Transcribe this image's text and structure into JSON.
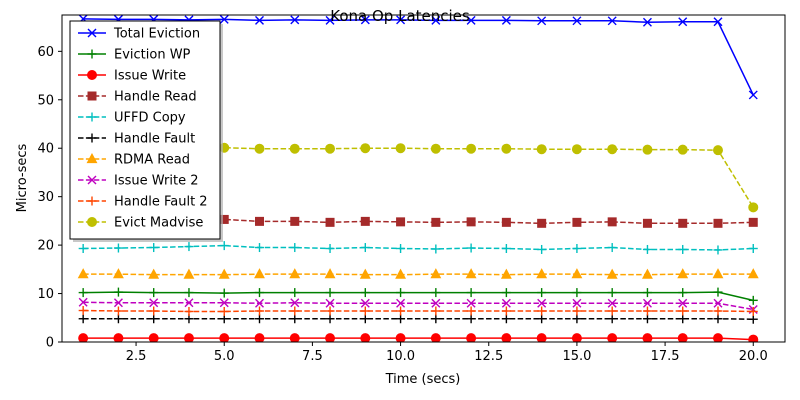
{
  "chart_data": {
    "type": "line",
    "title": "Kona Op Latencies",
    "xlabel": "Time (secs)",
    "ylabel": "Micro-secs",
    "xlim": [
      0.4,
      20.9
    ],
    "ylim": [
      0,
      67.5
    ],
    "xticks": [
      2.5,
      5.0,
      7.5,
      10.0,
      12.5,
      15.0,
      17.5,
      20.0
    ],
    "xtick_labels": [
      "2.5",
      "5.0",
      "7.5",
      "10.0",
      "12.5",
      "15.0",
      "17.5",
      "20.0"
    ],
    "yticks": [
      0,
      10,
      20,
      30,
      40,
      50,
      60
    ],
    "ytick_labels": [
      "0",
      "10",
      "20",
      "30",
      "40",
      "50",
      "60"
    ],
    "grid": false,
    "legend_position": "upper-left",
    "x": [
      1,
      2,
      3,
      4,
      5,
      6,
      7,
      8,
      9,
      10,
      11,
      12,
      13,
      14,
      15,
      16,
      17,
      18,
      19,
      20
    ],
    "series": [
      {
        "name": "Total Eviction",
        "color": "#0000ff",
        "marker": "x",
        "dash": "solid",
        "values": [
          66.7,
          66.6,
          66.6,
          66.5,
          66.6,
          66.4,
          66.5,
          66.4,
          66.5,
          66.5,
          66.4,
          66.4,
          66.4,
          66.3,
          66.3,
          66.3,
          66.0,
          66.1,
          66.1,
          51.0
        ]
      },
      {
        "name": "Eviction WP",
        "color": "#008000",
        "marker": "plus",
        "dash": "solid",
        "values": [
          10.2,
          10.3,
          10.2,
          10.2,
          10.1,
          10.2,
          10.2,
          10.2,
          10.2,
          10.2,
          10.2,
          10.2,
          10.2,
          10.2,
          10.2,
          10.2,
          10.2,
          10.2,
          10.3,
          8.6
        ]
      },
      {
        "name": "Issue Write",
        "color": "#ff0000",
        "marker": "circle",
        "dash": "solid",
        "values": [
          0.8,
          0.8,
          0.8,
          0.8,
          0.8,
          0.8,
          0.8,
          0.8,
          0.8,
          0.8,
          0.8,
          0.8,
          0.8,
          0.8,
          0.8,
          0.8,
          0.8,
          0.8,
          0.8,
          0.5
        ]
      },
      {
        "name": "Handle Read",
        "color": "#a52a2a",
        "marker": "square",
        "dash": "dashed",
        "values": [
          25.5,
          25.3,
          25.3,
          25.2,
          25.3,
          24.9,
          24.9,
          24.7,
          24.9,
          24.8,
          24.7,
          24.8,
          24.7,
          24.5,
          24.7,
          24.8,
          24.5,
          24.5,
          24.5,
          24.7
        ]
      },
      {
        "name": "UFFD Copy",
        "color": "#00bfbf",
        "marker": "plus",
        "dash": "dashed",
        "values": [
          19.3,
          19.4,
          19.5,
          19.7,
          19.9,
          19.5,
          19.5,
          19.3,
          19.5,
          19.3,
          19.2,
          19.4,
          19.3,
          19.1,
          19.3,
          19.5,
          19.1,
          19.1,
          19.0,
          19.3
        ]
      },
      {
        "name": "Handle Fault",
        "color": "#000000",
        "marker": "plus",
        "dash": "dashed",
        "values": [
          4.8,
          4.8,
          4.8,
          4.8,
          4.8,
          4.8,
          4.8,
          4.8,
          4.8,
          4.8,
          4.8,
          4.8,
          4.8,
          4.8,
          4.8,
          4.8,
          4.8,
          4.8,
          4.8,
          4.7
        ]
      },
      {
        "name": "RDMA Read",
        "color": "#ffa500",
        "marker": "triangle",
        "dash": "dashed",
        "values": [
          14.0,
          14.0,
          13.9,
          13.9,
          13.9,
          14.0,
          14.0,
          14.0,
          13.9,
          13.9,
          14.0,
          14.0,
          13.9,
          14.0,
          14.0,
          13.9,
          13.9,
          14.0,
          14.0,
          14.0
        ]
      },
      {
        "name": "Issue Write 2",
        "color": "#bf00bf",
        "marker": "x",
        "dash": "dashed",
        "values": [
          8.2,
          8.1,
          8.1,
          8.1,
          8.1,
          8.0,
          8.1,
          8.0,
          8.0,
          8.0,
          8.0,
          8.0,
          8.0,
          8.0,
          8.0,
          8.0,
          8.0,
          8.0,
          8.0,
          6.7
        ]
      },
      {
        "name": "Handle Fault 2",
        "color": "#ff4500",
        "marker": "plus",
        "dash": "dashed",
        "values": [
          6.5,
          6.4,
          6.4,
          6.3,
          6.3,
          6.4,
          6.4,
          6.4,
          6.4,
          6.4,
          6.4,
          6.4,
          6.4,
          6.4,
          6.4,
          6.4,
          6.4,
          6.4,
          6.4,
          6.3
        ]
      },
      {
        "name": "Evict Madvise",
        "color": "#bfbf00",
        "marker": "circle",
        "dash": "dashed",
        "values": [
          40.8,
          40.6,
          40.5,
          40.3,
          40.1,
          39.9,
          39.9,
          39.9,
          40.0,
          40.0,
          39.9,
          39.9,
          39.9,
          39.8,
          39.8,
          39.8,
          39.7,
          39.7,
          39.6,
          27.8
        ]
      }
    ]
  }
}
